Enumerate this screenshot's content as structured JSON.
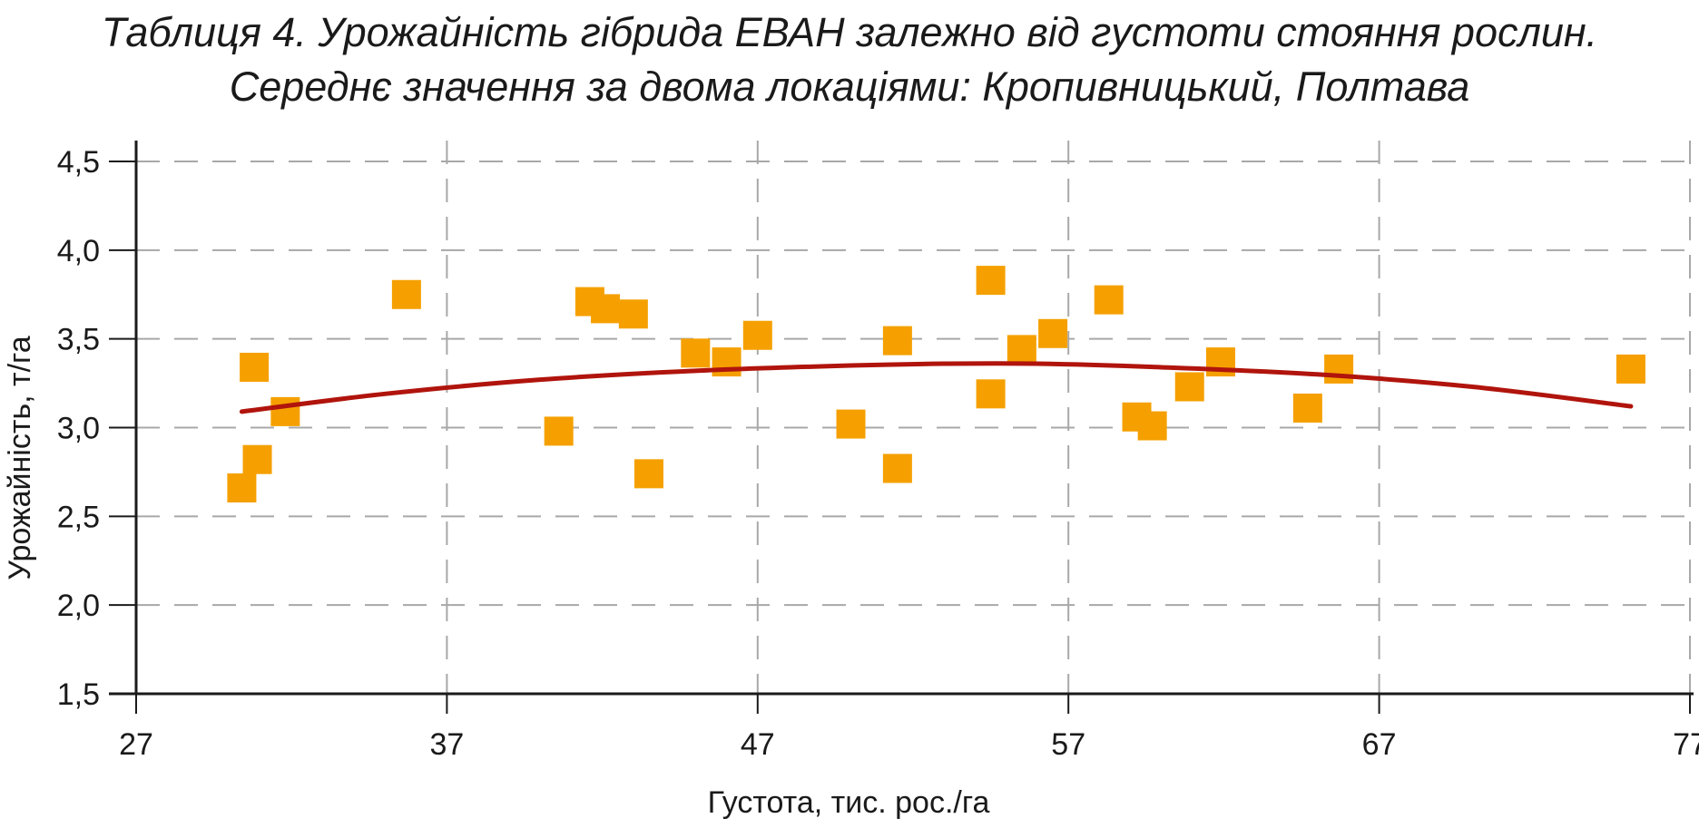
{
  "chart_data": {
    "type": "scatter",
    "title_line1": "Таблиця 4. Урожайність гібрида ЕВАН залежно від густоти стояння рослин.",
    "title_line2": "Середнє значення за двома локаціями: Кропивницький, Полтава",
    "xlabel": "Густота, тис. рос./га",
    "ylabel": "Урожайність, т/га",
    "xlim": [
      27,
      77
    ],
    "ylim": [
      1.5,
      4.6
    ],
    "x_ticks": [
      "27",
      "37",
      "47",
      "57",
      "67",
      "77"
    ],
    "x_tick_values": [
      27,
      37,
      47,
      57,
      67,
      77
    ],
    "y_ticks": [
      "1,5",
      "2,0",
      "2,5",
      "3,0",
      "3,5",
      "4,0",
      "4,5"
    ],
    "y_tick_values": [
      1.5,
      2.0,
      2.5,
      3.0,
      3.5,
      4.0,
      4.5
    ],
    "grid": true,
    "marker_color": "#f5a000",
    "trend_color": "#b0140c",
    "points": [
      {
        "x": 30.4,
        "y": 2.66
      },
      {
        "x": 30.8,
        "y": 3.34
      },
      {
        "x": 30.9,
        "y": 2.82
      },
      {
        "x": 31.8,
        "y": 3.09
      },
      {
        "x": 35.7,
        "y": 3.75
      },
      {
        "x": 40.6,
        "y": 2.98
      },
      {
        "x": 41.6,
        "y": 3.71
      },
      {
        "x": 42.1,
        "y": 3.67
      },
      {
        "x": 43.0,
        "y": 3.64
      },
      {
        "x": 43.5,
        "y": 2.74
      },
      {
        "x": 45.0,
        "y": 3.42
      },
      {
        "x": 46.0,
        "y": 3.37
      },
      {
        "x": 47.0,
        "y": 3.52
      },
      {
        "x": 50.0,
        "y": 3.02
      },
      {
        "x": 51.5,
        "y": 3.49
      },
      {
        "x": 51.5,
        "y": 2.77
      },
      {
        "x": 54.5,
        "y": 3.83
      },
      {
        "x": 54.5,
        "y": 3.19
      },
      {
        "x": 55.5,
        "y": 3.44
      },
      {
        "x": 56.5,
        "y": 3.53
      },
      {
        "x": 58.3,
        "y": 3.72
      },
      {
        "x": 59.2,
        "y": 3.06
      },
      {
        "x": 59.7,
        "y": 3.01
      },
      {
        "x": 60.9,
        "y": 3.23
      },
      {
        "x": 61.9,
        "y": 3.37
      },
      {
        "x": 64.7,
        "y": 3.11
      },
      {
        "x": 65.7,
        "y": 3.33
      },
      {
        "x": 75.1,
        "y": 3.33
      }
    ],
    "trendline": {
      "type": "polynomial-2",
      "x_range": [
        30.4,
        75.1
      ],
      "points": [
        {
          "x": 30.4,
          "y": 3.09
        },
        {
          "x": 35,
          "y": 3.19
        },
        {
          "x": 40,
          "y": 3.27
        },
        {
          "x": 45,
          "y": 3.32
        },
        {
          "x": 50,
          "y": 3.35
        },
        {
          "x": 53,
          "y": 3.36
        },
        {
          "x": 56,
          "y": 3.36
        },
        {
          "x": 60,
          "y": 3.34
        },
        {
          "x": 65,
          "y": 3.3
        },
        {
          "x": 70,
          "y": 3.23
        },
        {
          "x": 75.1,
          "y": 3.12
        }
      ]
    }
  }
}
